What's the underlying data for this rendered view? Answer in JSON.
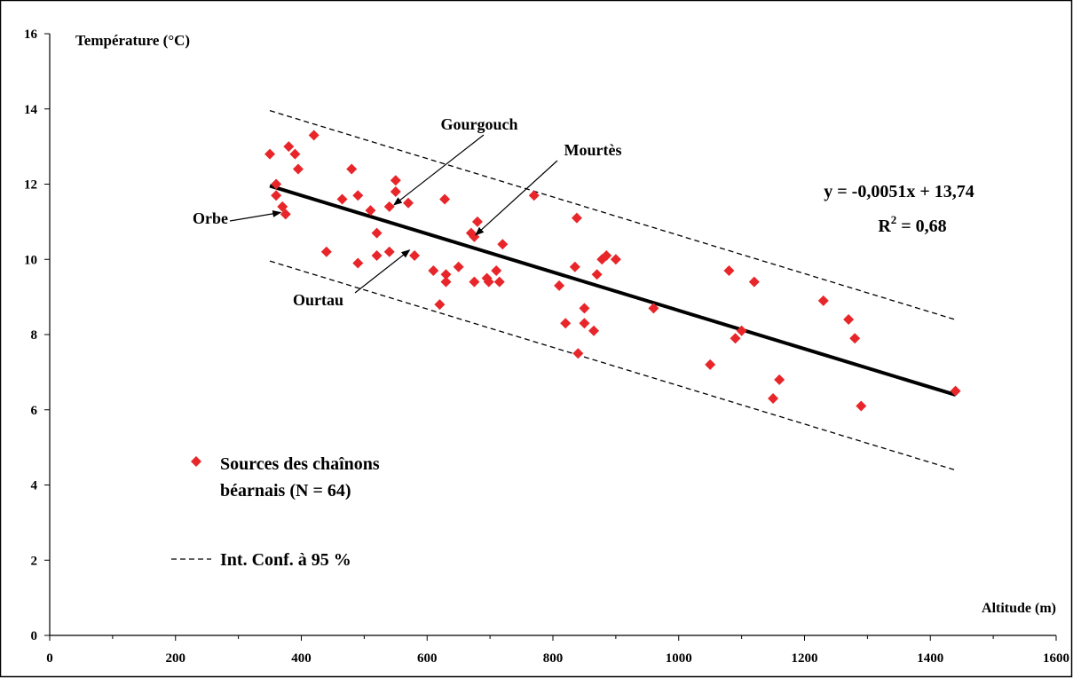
{
  "chart_data": {
    "type": "scatter",
    "ylabel": "Température (°C)",
    "xlabel": "Altitude (m)",
    "xlim": [
      0,
      1600
    ],
    "ylim": [
      0,
      16
    ],
    "x_ticks": [
      "0",
      "200",
      "400",
      "600",
      "800",
      "1000",
      "1200",
      "1400",
      "1600"
    ],
    "y_ticks": [
      "0",
      "2",
      "4",
      "6",
      "8",
      "10",
      "12",
      "14",
      "16"
    ],
    "grid": false,
    "series": [
      {
        "name": "Sources des chaînons béarnais (N = 64)",
        "color": "#e8262a",
        "marker": "diamond",
        "points": [
          [
            350,
            12.8
          ],
          [
            360,
            12.0
          ],
          [
            360,
            11.7
          ],
          [
            370,
            11.4
          ],
          [
            375,
            11.2
          ],
          [
            380,
            13.0
          ],
          [
            390,
            12.8
          ],
          [
            395,
            12.4
          ],
          [
            420,
            13.3
          ],
          [
            440,
            10.2
          ],
          [
            465,
            11.6
          ],
          [
            480,
            12.4
          ],
          [
            490,
            11.7
          ],
          [
            490,
            9.9
          ],
          [
            510,
            11.3
          ],
          [
            520,
            10.7
          ],
          [
            520,
            10.1
          ],
          [
            540,
            10.2
          ],
          [
            540,
            11.4
          ],
          [
            550,
            12.1
          ],
          [
            550,
            11.8
          ],
          [
            570,
            11.5
          ],
          [
            580,
            10.1
          ],
          [
            610,
            9.7
          ],
          [
            620,
            8.8
          ],
          [
            628,
            11.6
          ],
          [
            630,
            9.6
          ],
          [
            630,
            9.4
          ],
          [
            650,
            9.8
          ],
          [
            670,
            10.7
          ],
          [
            675,
            10.6
          ],
          [
            675,
            9.4
          ],
          [
            680,
            11.0
          ],
          [
            695,
            9.5
          ],
          [
            698,
            9.4
          ],
          [
            710,
            9.7
          ],
          [
            715,
            9.4
          ],
          [
            720,
            10.4
          ],
          [
            770,
            11.7
          ],
          [
            810,
            9.3
          ],
          [
            820,
            8.3
          ],
          [
            835,
            9.8
          ],
          [
            838,
            11.1
          ],
          [
            840,
            7.5
          ],
          [
            850,
            8.7
          ],
          [
            850,
            8.3
          ],
          [
            865,
            8.1
          ],
          [
            870,
            9.6
          ],
          [
            878,
            10.0
          ],
          [
            885,
            10.1
          ],
          [
            900,
            10.0
          ],
          [
            960,
            8.7
          ],
          [
            1050,
            7.2
          ],
          [
            1080,
            9.7
          ],
          [
            1090,
            7.9
          ],
          [
            1100,
            8.1
          ],
          [
            1120,
            9.4
          ],
          [
            1150,
            6.3
          ],
          [
            1160,
            6.8
          ],
          [
            1230,
            8.9
          ],
          [
            1270,
            8.4
          ],
          [
            1280,
            7.9
          ],
          [
            1290,
            6.1
          ],
          [
            1440,
            6.5
          ]
        ]
      }
    ],
    "regression": {
      "x_range": [
        350,
        1440
      ],
      "slope": -0.0051,
      "intercept": 13.74,
      "equation_label": "y = -0,0051x + 13,74",
      "r2_prefix": "R",
      "r2_sup": "2",
      "r2_suffix": " = 0,68"
    },
    "confidence_interval": {
      "name": "Int. Conf. à 95 %",
      "offset": 2.0
    },
    "legend": {
      "placement": "bottom-left",
      "scatter_line1": "Sources des chaînons",
      "scatter_line2": "béarnais (N = 64)",
      "ci_label": "Int. Conf. à 95 %"
    },
    "annotations": [
      {
        "text": "Gourgouch",
        "point": [
          550,
          11.4
        ]
      },
      {
        "text": "Mourtès",
        "point": [
          680,
          10.6
        ]
      },
      {
        "text": "Orbe",
        "point": [
          370,
          11.2
        ]
      },
      {
        "text": "Ourtau",
        "point": [
          575,
          10.2
        ]
      }
    ]
  }
}
